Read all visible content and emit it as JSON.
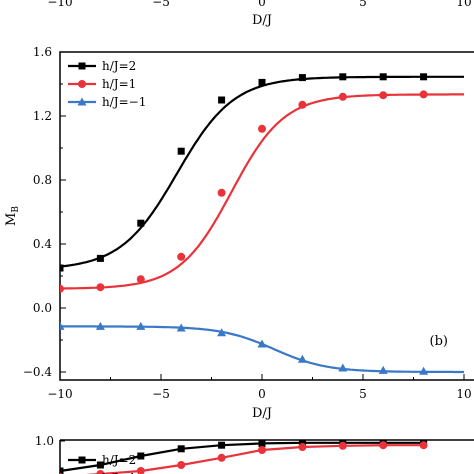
{
  "chart_data": [
    {
      "type": "line",
      "panel": "top (partial)",
      "x_ticks": [
        "−10",
        "−5",
        "0",
        "5",
        "10"
      ],
      "xlabel": "D/J",
      "xlim": [
        -10,
        10
      ]
    },
    {
      "type": "line",
      "panel": "(b)",
      "xlabel": "D/J",
      "ylabel": "M",
      "ylabel_sub": "B",
      "xlim": [
        -10,
        10
      ],
      "ylim": [
        -0.45,
        1.6
      ],
      "x_ticks": [
        "−10",
        "−5",
        "0",
        "5",
        "10"
      ],
      "y_ticks": [
        "−0.4",
        "0.0",
        "0.4",
        "0.8",
        "1.2",
        "1.6"
      ],
      "y_tick_values": [
        -0.4,
        0.0,
        0.4,
        0.8,
        1.2,
        1.6
      ],
      "x_tick_values": [
        -10,
        -5,
        0,
        5,
        10
      ],
      "legend_placement": "top-left",
      "series": [
        {
          "name": "h/J=2",
          "color": "#000000",
          "marker": "square",
          "x": [
            -10,
            -8,
            -6,
            -4,
            -2,
            0,
            2,
            4,
            6,
            8
          ],
          "y": [
            0.25,
            0.31,
            0.53,
            0.98,
            1.3,
            1.41,
            1.44,
            1.445,
            1.445,
            1.445
          ],
          "curve": {
            "base": 0.24,
            "amp": 1.205,
            "center": -4.2,
            "width": 1.4
          }
        },
        {
          "name": "h/J=1",
          "color": "#e8333a",
          "marker": "circle",
          "x": [
            -10,
            -8,
            -6,
            -4,
            -2,
            0,
            2,
            4,
            6,
            8
          ],
          "y": [
            0.12,
            0.13,
            0.18,
            0.32,
            0.72,
            1.12,
            1.27,
            1.32,
            1.33,
            1.335
          ],
          "curve": {
            "base": 0.12,
            "amp": 1.215,
            "center": -1.5,
            "width": 1.3
          }
        },
        {
          "name": "h/J=−1",
          "color": "#3a78c8",
          "marker": "triangle",
          "x": [
            -10,
            -8,
            -6,
            -4,
            -2,
            0,
            2,
            4,
            6,
            8
          ],
          "y": [
            -0.115,
            -0.115,
            -0.115,
            -0.125,
            -0.155,
            -0.225,
            -0.32,
            -0.375,
            -0.39,
            -0.395
          ],
          "curve": {
            "base": -0.115,
            "amp": -0.285,
            "center": 0.6,
            "width": 1.3
          }
        }
      ],
      "annotation": "(b)"
    },
    {
      "type": "line",
      "panel": "bottom (partial)",
      "y_ticks": [
        "1.0"
      ],
      "xlim": [
        -10,
        10
      ],
      "legend_visible": [
        "h/J=2",
        "h/J=1"
      ],
      "series": [
        {
          "name": "h/J=2",
          "color": "#000000",
          "marker": "square",
          "x": [
            -10,
            -8,
            -6,
            -4,
            -2,
            0,
            2,
            4,
            6,
            8
          ],
          "y": [
            0.5,
            0.6,
            0.75,
            0.87,
            0.93,
            0.96,
            0.97,
            0.97,
            0.97,
            0.97
          ]
        },
        {
          "name": "h/J=1",
          "color": "#e8333a",
          "marker": "circle",
          "x": [
            -10,
            -8,
            -6,
            -4,
            -2,
            0,
            2,
            4,
            6,
            8
          ],
          "y": [
            0.4,
            0.45,
            0.5,
            0.6,
            0.72,
            0.85,
            0.9,
            0.92,
            0.93,
            0.93
          ]
        }
      ]
    }
  ]
}
